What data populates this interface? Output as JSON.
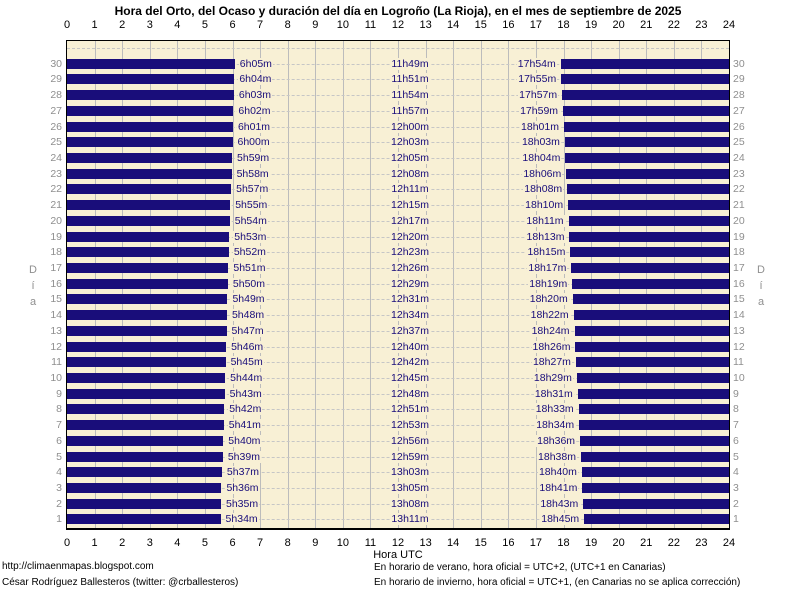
{
  "chart_data": {
    "type": "bar",
    "orientation": "horizontal",
    "title": "Hora del Orto, del Ocaso y duración del día en Logroño (La Rioja), en el mes de septiembre de 2025",
    "xlabel": "Hora UTC",
    "ylabel": "Día",
    "xlim": [
      0,
      24
    ],
    "x_ticks": [
      0,
      1,
      2,
      3,
      4,
      5,
      6,
      7,
      8,
      9,
      10,
      11,
      12,
      13,
      14,
      15,
      16,
      17,
      18,
      19,
      20,
      21,
      22,
      23,
      24
    ],
    "grid": {
      "vertical": "solid",
      "horizontal": "dashed"
    },
    "colors": {
      "night_bar": "#190D7A",
      "daylight_background": "#F8F0D5",
      "gridline": "#BCBCBC",
      "day_number_text": "#8F8F8F",
      "time_label_text": "#190D7A"
    },
    "days": [
      {
        "day": 30,
        "orto": "6h05m",
        "duracion": "11h49m",
        "ocaso": "17h54m"
      },
      {
        "day": 29,
        "orto": "6h04m",
        "duracion": "11h51m",
        "ocaso": "17h55m"
      },
      {
        "day": 28,
        "orto": "6h03m",
        "duracion": "11h54m",
        "ocaso": "17h57m"
      },
      {
        "day": 27,
        "orto": "6h02m",
        "duracion": "11h57m",
        "ocaso": "17h59m"
      },
      {
        "day": 26,
        "orto": "6h01m",
        "duracion": "12h00m",
        "ocaso": "18h01m"
      },
      {
        "day": 25,
        "orto": "6h00m",
        "duracion": "12h03m",
        "ocaso": "18h03m"
      },
      {
        "day": 24,
        "orto": "5h59m",
        "duracion": "12h05m",
        "ocaso": "18h04m"
      },
      {
        "day": 23,
        "orto": "5h58m",
        "duracion": "12h08m",
        "ocaso": "18h06m"
      },
      {
        "day": 22,
        "orto": "5h57m",
        "duracion": "12h11m",
        "ocaso": "18h08m"
      },
      {
        "day": 21,
        "orto": "5h55m",
        "duracion": "12h15m",
        "ocaso": "18h10m"
      },
      {
        "day": 20,
        "orto": "5h54m",
        "duracion": "12h17m",
        "ocaso": "18h11m"
      },
      {
        "day": 19,
        "orto": "5h53m",
        "duracion": "12h20m",
        "ocaso": "18h13m"
      },
      {
        "day": 18,
        "orto": "5h52m",
        "duracion": "12h23m",
        "ocaso": "18h15m"
      },
      {
        "day": 17,
        "orto": "5h51m",
        "duracion": "12h26m",
        "ocaso": "18h17m"
      },
      {
        "day": 16,
        "orto": "5h50m",
        "duracion": "12h29m",
        "ocaso": "18h19m"
      },
      {
        "day": 15,
        "orto": "5h49m",
        "duracion": "12h31m",
        "ocaso": "18h20m"
      },
      {
        "day": 14,
        "orto": "5h48m",
        "duracion": "12h34m",
        "ocaso": "18h22m"
      },
      {
        "day": 13,
        "orto": "5h47m",
        "duracion": "12h37m",
        "ocaso": "18h24m"
      },
      {
        "day": 12,
        "orto": "5h46m",
        "duracion": "12h40m",
        "ocaso": "18h26m"
      },
      {
        "day": 11,
        "orto": "5h45m",
        "duracion": "12h42m",
        "ocaso": "18h27m"
      },
      {
        "day": 10,
        "orto": "5h44m",
        "duracion": "12h45m",
        "ocaso": "18h29m"
      },
      {
        "day": 9,
        "orto": "5h43m",
        "duracion": "12h48m",
        "ocaso": "18h31m"
      },
      {
        "day": 8,
        "orto": "5h42m",
        "duracion": "12h51m",
        "ocaso": "18h33m"
      },
      {
        "day": 7,
        "orto": "5h41m",
        "duracion": "12h53m",
        "ocaso": "18h34m"
      },
      {
        "day": 6,
        "orto": "5h40m",
        "duracion": "12h56m",
        "ocaso": "18h36m"
      },
      {
        "day": 5,
        "orto": "5h39m",
        "duracion": "12h59m",
        "ocaso": "18h38m"
      },
      {
        "day": 4,
        "orto": "5h37m",
        "duracion": "13h03m",
        "ocaso": "18h40m"
      },
      {
        "day": 3,
        "orto": "5h36m",
        "duracion": "13h05m",
        "ocaso": "18h41m"
      },
      {
        "day": 2,
        "orto": "5h35m",
        "duracion": "13h08m",
        "ocaso": "18h43m"
      },
      {
        "day": 1,
        "orto": "5h34m",
        "duracion": "13h11m",
        "ocaso": "18h45m"
      }
    ]
  },
  "footer": {
    "url": "http://climaenmapas.blogspot.com",
    "author": "César Rodríguez Ballesteros (twitter: @crballesteros)",
    "note_summer": "En horario de verano, hora oficial = UTC+2, (UTC+1 en Canarias)",
    "note_winter": "En horario de invierno, hora oficial = UTC+1, (en Canarias no se aplica corrección)"
  }
}
